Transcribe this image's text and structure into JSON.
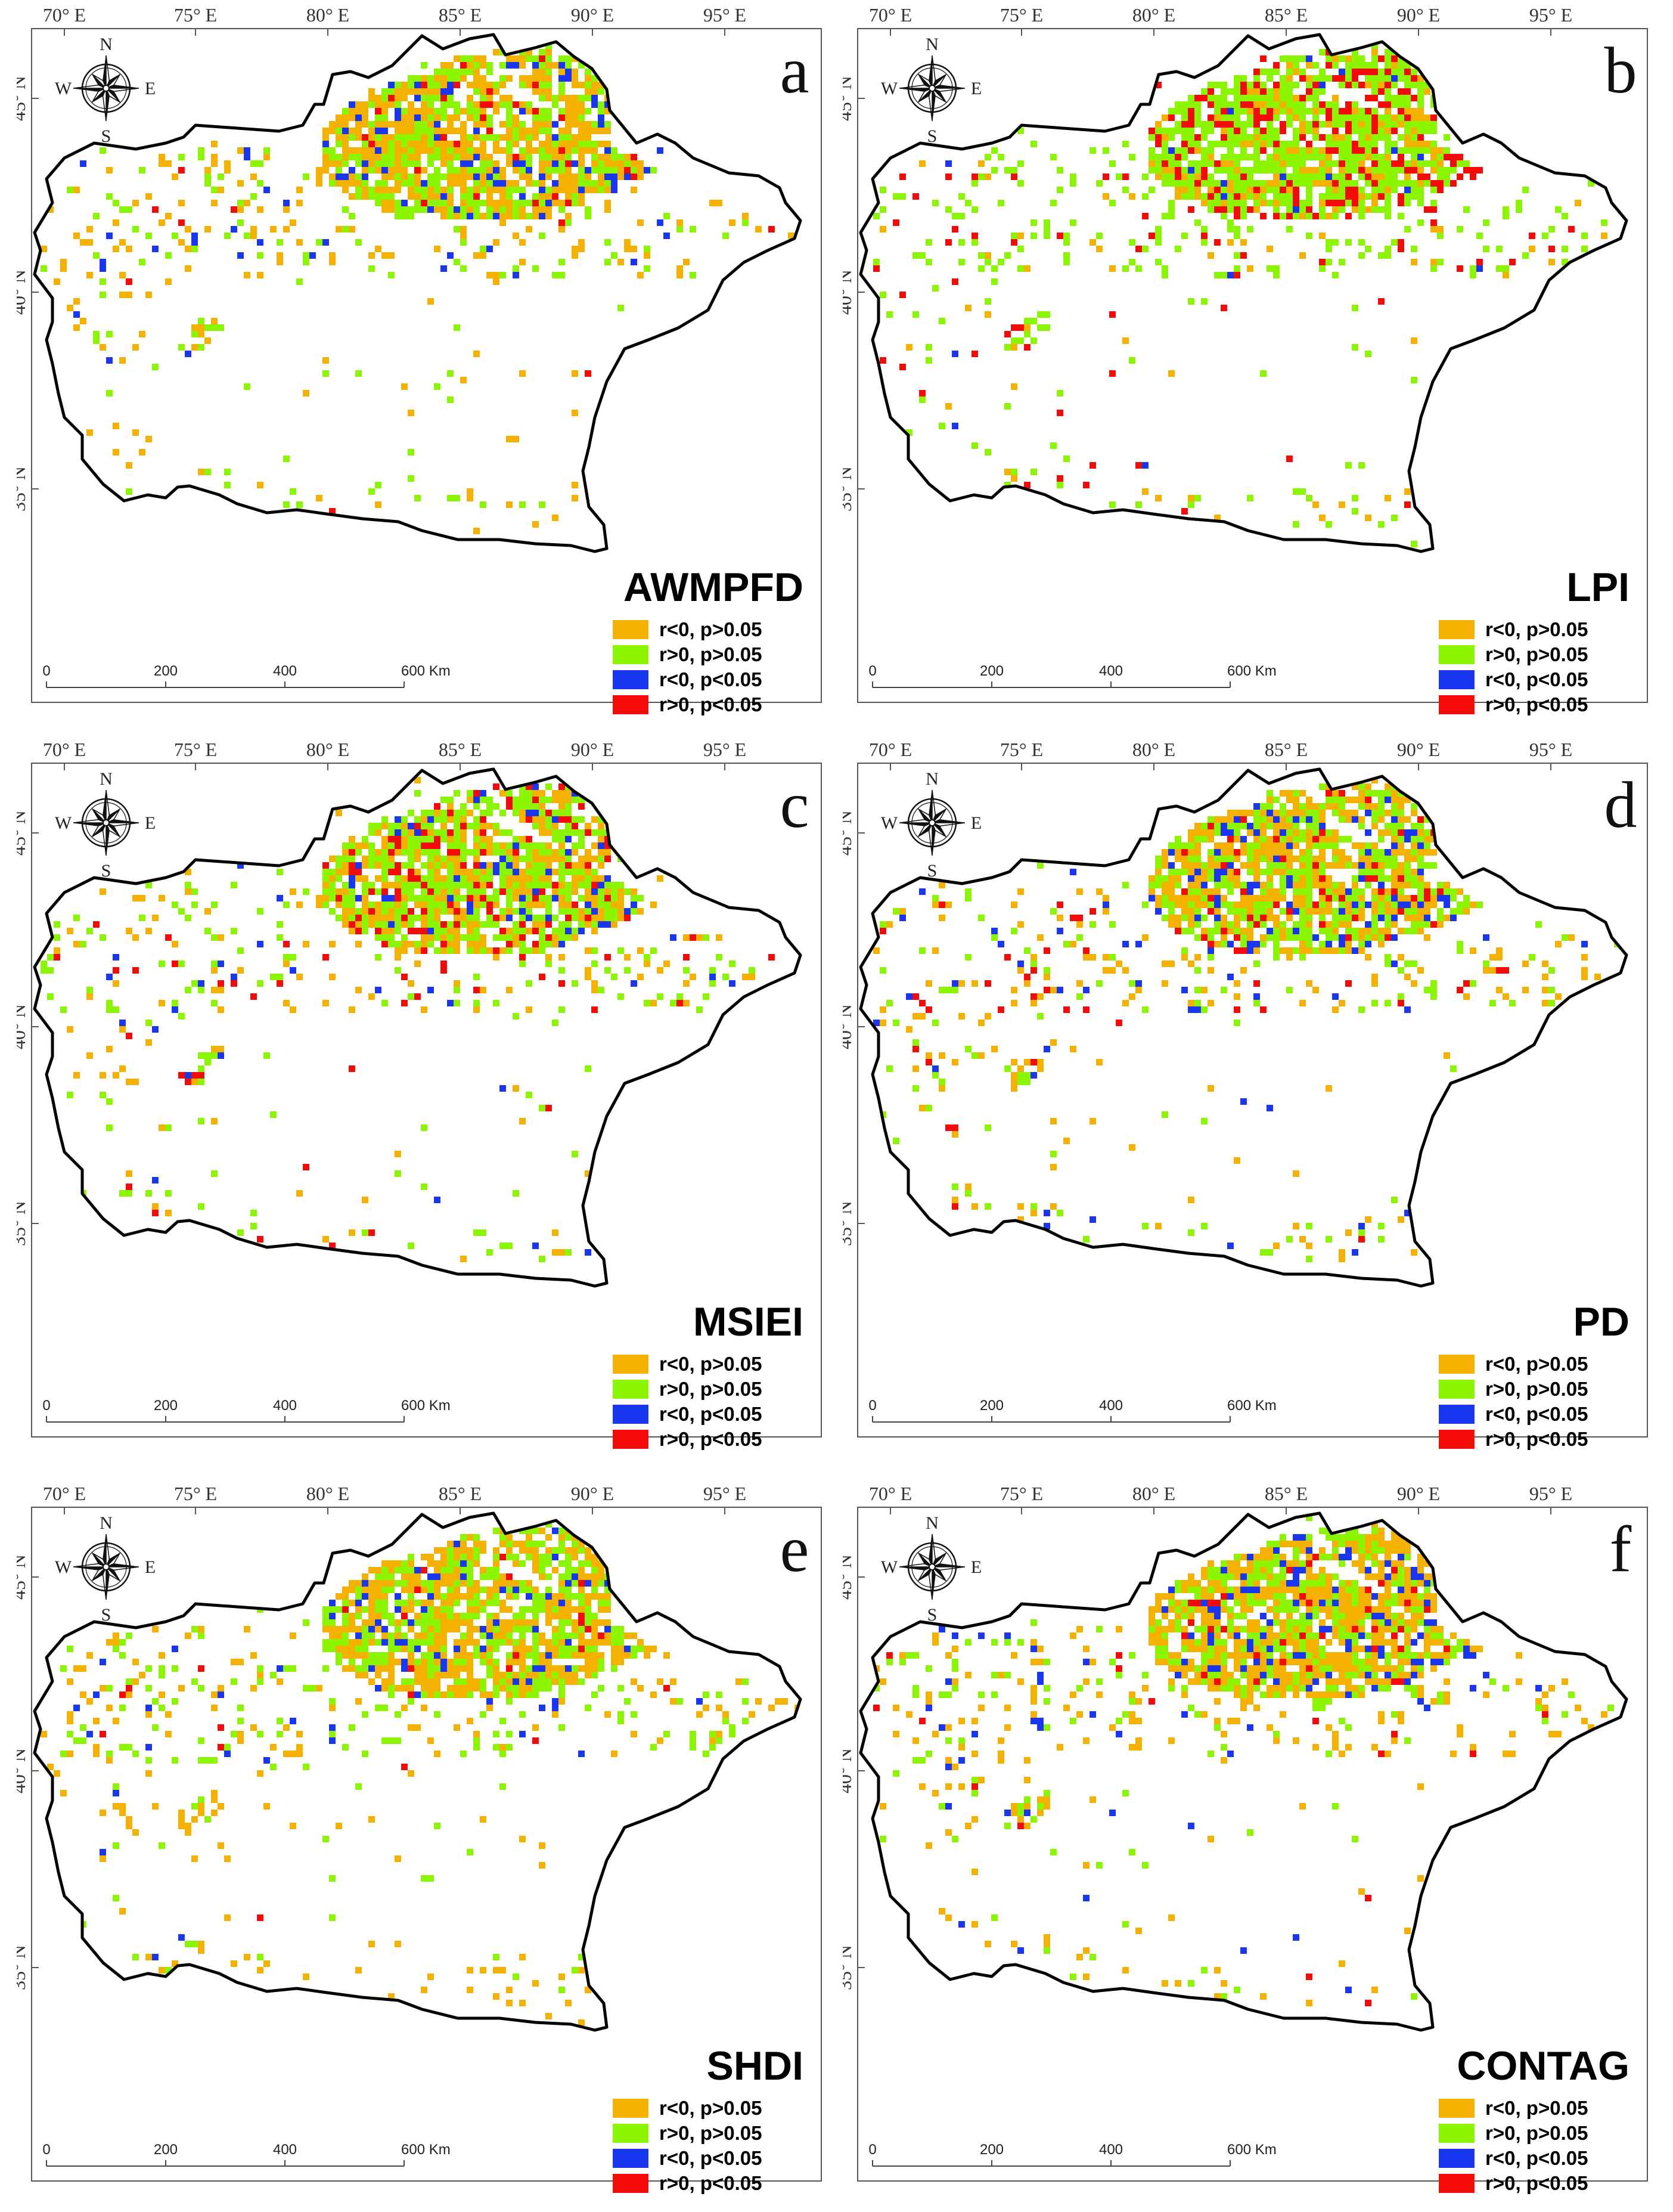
{
  "colors": {
    "neg_ns": "#F5B100",
    "pos_ns": "#8CF500",
    "neg_sig": "#1A36F0",
    "pos_sig": "#F50A0A",
    "border": "#000000",
    "frame": "#555555"
  },
  "axes": {
    "lon_ticks": [
      "70° E",
      "75° E",
      "80° E",
      "85° E",
      "90° E",
      "95° E"
    ],
    "lat_ticks": [
      "45° N",
      "40° N",
      "35° N"
    ]
  },
  "compass": {
    "n": "N",
    "s": "S",
    "e": "E",
    "w": "W",
    "icon": "compass-rose-icon"
  },
  "legend": [
    {
      "label": "r<0, p>0.05",
      "color_key": "neg_ns"
    },
    {
      "label": "r>0, p>0.05",
      "color_key": "pos_ns"
    },
    {
      "label": "r<0, p<0.05",
      "color_key": "neg_sig"
    },
    {
      "label": "r>0, p<0.05",
      "color_key": "pos_sig"
    }
  ],
  "scale_bar": {
    "labels": [
      "0",
      "200",
      "400",
      "600 Km"
    ]
  },
  "panels": [
    {
      "letter": "a",
      "index": "AWMPFD",
      "mix": [
        0.5,
        0.36,
        0.1,
        0.04
      ]
    },
    {
      "letter": "b",
      "index": "LPI",
      "mix": [
        0.15,
        0.63,
        0.02,
        0.2
      ]
    },
    {
      "letter": "c",
      "index": "MSIEI",
      "mix": [
        0.3,
        0.5,
        0.08,
        0.12
      ]
    },
    {
      "letter": "d",
      "index": "PD",
      "mix": [
        0.45,
        0.35,
        0.12,
        0.08
      ]
    },
    {
      "letter": "e",
      "index": "SHDI",
      "mix": [
        0.52,
        0.38,
        0.08,
        0.02
      ]
    },
    {
      "letter": "f",
      "index": "CONTAG",
      "mix": [
        0.52,
        0.32,
        0.12,
        0.04
      ]
    }
  ]
}
